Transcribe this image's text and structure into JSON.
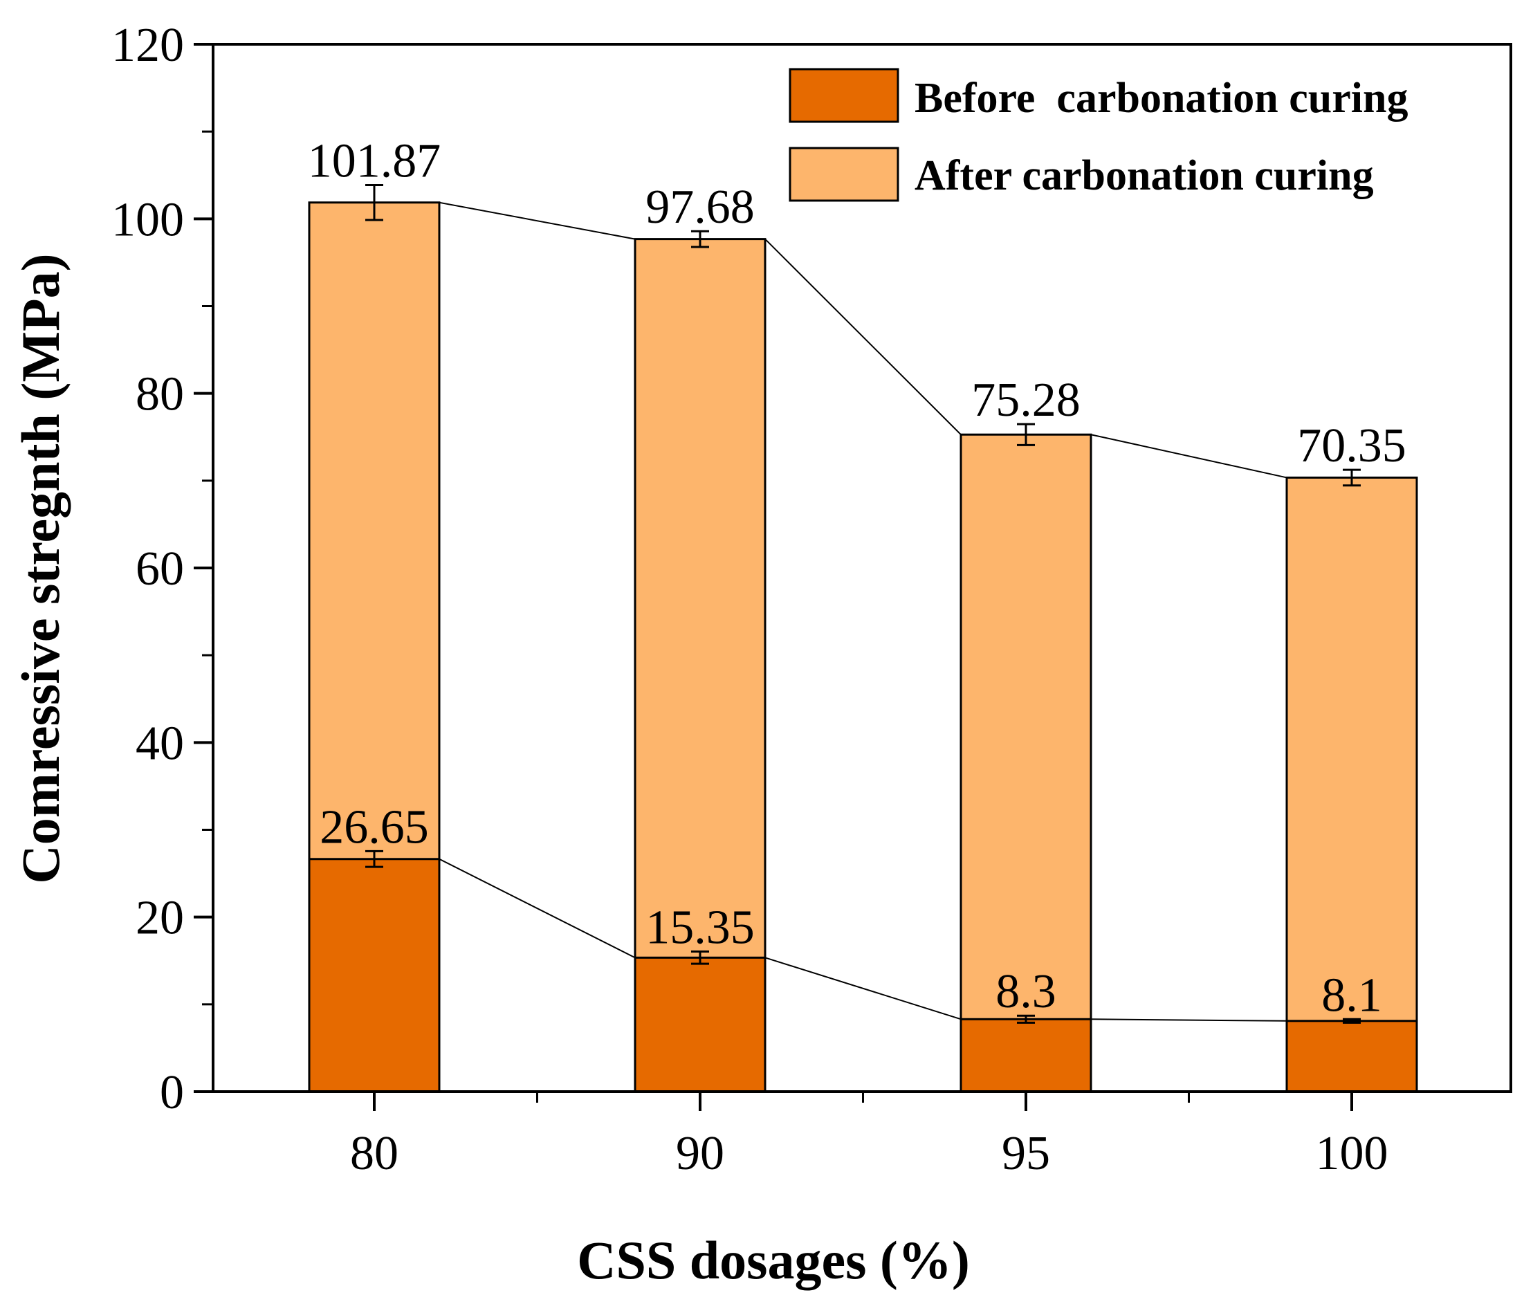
{
  "chart_data": {
    "type": "bar",
    "stacked": false,
    "overlaid": true,
    "categories": [
      "80",
      "90",
      "95",
      "100"
    ],
    "xlabel": "CSS dosages (%)",
    "ylabel": "Comressive stregnth (MPa)",
    "ylim": [
      0,
      120
    ],
    "yticks": [
      0,
      20,
      40,
      60,
      80,
      100,
      120
    ],
    "grid": false,
    "legend_position": "top-right",
    "series": [
      {
        "name": "Before  carbonation curing",
        "color": "#E66A00",
        "values": [
          26.65,
          15.35,
          8.3,
          8.1
        ],
        "labels": [
          "26.65",
          "15.35",
          "8.3",
          "8.1"
        ],
        "errors": [
          0.9,
          0.7,
          0.4,
          0.2
        ]
      },
      {
        "name": "After carbonation curing",
        "color": "#FDB56C",
        "values": [
          101.87,
          97.68,
          75.28,
          70.35
        ],
        "labels": [
          "101.87",
          "97.68",
          "75.28",
          "70.35"
        ],
        "errors": [
          2.0,
          0.9,
          1.2,
          0.9
        ]
      }
    ]
  }
}
